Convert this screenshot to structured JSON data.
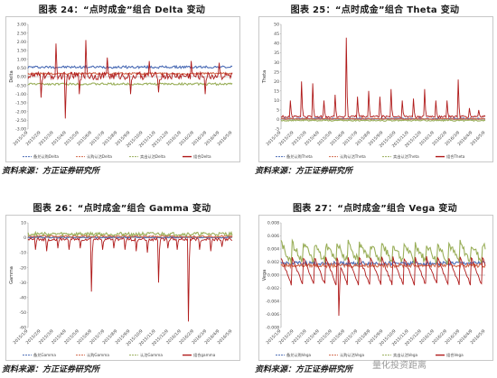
{
  "chart_data": [
    {
      "id": "c24",
      "type": "line",
      "title": "图表 24：“点时成金”组合 Delta 变动",
      "source": "资料来源：方正证券研究所",
      "ylabel": "Delta",
      "ylim": [
        -3,
        3
      ],
      "yticks": [
        "3.00",
        "2.50",
        "2.00",
        "1.50",
        "1.00",
        "0.50",
        "0.00",
        "-0.50",
        "-1.00",
        "-1.50",
        "-2.00",
        "-2.50",
        "-3.00"
      ],
      "xticks": [
        "2015/1/9",
        "2015/2/9",
        "2015/3/9",
        "2015/4/9",
        "2015/5/9",
        "2015/6/9",
        "2015/7/9",
        "2015/8/9",
        "2015/9/9",
        "2015/10/9",
        "2015/11/9",
        "2015/12/9",
        "2016/1/9",
        "2016/2/9",
        "2016/3/9",
        "2016/4/9",
        "2016/5/9"
      ],
      "legend": [
        "备兑认购Delta",
        "认购认沽Delta",
        "卖出认沽Delta",
        "组合Delta"
      ],
      "series": [
        {
          "name": "备兑认购Delta",
          "color": "#4a6bb5",
          "base": 0.55,
          "noise": 0.07,
          "spikes": [],
          "dips": []
        },
        {
          "name": "认购认沽Delta",
          "color": "#d2694c",
          "base": 0.18,
          "noise": 0.05,
          "spikes": [],
          "dips": []
        },
        {
          "name": "卖出认沽Delta",
          "color": "#9aaf5a",
          "base": -0.42,
          "noise": 0.06,
          "spikes": [],
          "dips": []
        },
        {
          "name": "组合Delta",
          "color": "#b01c1c",
          "base": 0.05,
          "noise": 0.22,
          "spikes": [
            [
              30,
              1.9
            ],
            [
              62,
              2.1
            ],
            [
              85,
              1.1
            ],
            [
              130,
              0.9
            ],
            [
              175,
              0.9
            ],
            [
              205,
              0.8
            ]
          ],
          "dips": [
            [
              14,
              -1.2
            ],
            [
              40,
              -2.4
            ],
            [
              55,
              -1.0
            ],
            [
              110,
              -1.0
            ],
            [
              140,
              -0.9
            ],
            [
              190,
              -1.0
            ]
          ]
        }
      ]
    },
    {
      "id": "c25",
      "type": "line",
      "title": "图表 25：“点时成金”组合 Theta 变动",
      "source": "资料来源：方正证券研究所",
      "ylabel": "Theta",
      "ylim": [
        -5,
        50
      ],
      "yticks": [
        "50",
        "45",
        "40",
        "35",
        "30",
        "25",
        "20",
        "15",
        "10",
        "5",
        "0",
        "-5"
      ],
      "xticks": [
        "2015/1/9",
        "2015/2/9",
        "2015/3/9",
        "2015/4/9",
        "2015/5/9",
        "2015/6/9",
        "2015/7/9",
        "2015/8/9",
        "2015/9/9",
        "2015/10/9",
        "2015/11/9",
        "2015/12/9",
        "2016/1/9",
        "2016/2/9",
        "2016/3/9",
        "2016/4/9",
        "2016/5/9"
      ],
      "legend": [
        "备兑认购Theta",
        "认购认沽Theta",
        "卖出认沽Theta",
        "组合Theta"
      ],
      "series": [
        {
          "name": "备兑认购Theta",
          "color": "#4a6bb5",
          "base": 0.5,
          "noise": 0.3,
          "spikes": [],
          "dips": []
        },
        {
          "name": "认购认沽Theta",
          "color": "#d2694c",
          "base": 0.3,
          "noise": 0.3,
          "spikes": [],
          "dips": []
        },
        {
          "name": "卖出认沽Theta",
          "color": "#9aaf5a",
          "base": -0.5,
          "noise": 0.4,
          "spikes": [],
          "dips": []
        },
        {
          "name": "组合Theta",
          "color": "#b01c1c",
          "base": 1.5,
          "noise": 0.6,
          "spikes": [
            [
              10,
              10
            ],
            [
              22,
              20
            ],
            [
              34,
              19
            ],
            [
              46,
              10
            ],
            [
              58,
              13
            ],
            [
              70,
              43
            ],
            [
              82,
              12
            ],
            [
              94,
              15
            ],
            [
              106,
              12
            ],
            [
              118,
              16
            ],
            [
              130,
              10
            ],
            [
              142,
              11
            ],
            [
              154,
              16
            ],
            [
              166,
              10
            ],
            [
              178,
              10
            ],
            [
              190,
              21
            ],
            [
              202,
              6
            ],
            [
              212,
              5
            ]
          ],
          "dips": []
        }
      ]
    },
    {
      "id": "c26",
      "type": "line",
      "title": "图表 26：“点时成金”组合 Gamma 变动",
      "source": "资料来源：方正证券研究所",
      "ylabel": "Gamma",
      "ylim": [
        -60,
        10
      ],
      "yticks": [
        "10",
        "0",
        "-10",
        "-20",
        "-30",
        "-40",
        "-50",
        "-60"
      ],
      "xticks": [
        "2015/1/9",
        "2015/2/9",
        "2015/3/9",
        "2015/4/9",
        "2015/5/9",
        "2015/6/9",
        "2015/7/9",
        "2015/8/9",
        "2015/9/9",
        "2015/10/9",
        "2015/11/9",
        "2015/12/9",
        "2016/1/9",
        "2016/2/9",
        "2016/3/9",
        "2016/4/9",
        "2016/5/9"
      ],
      "legend": [
        "备兑Gamma",
        "认购Gamma",
        "认沽Gamma",
        "组合gamma"
      ],
      "series": [
        {
          "name": "备兑Gamma",
          "color": "#4a6bb5",
          "base": 0.3,
          "noise": 0.5,
          "spikes": [],
          "dips": []
        },
        {
          "name": "认购Gamma",
          "color": "#d2694c",
          "base": 1.0,
          "noise": 0.6,
          "spikes": [],
          "dips": []
        },
        {
          "name": "认沽Gamma",
          "color": "#9aaf5a",
          "base": 2.5,
          "noise": 1.2,
          "spikes": [],
          "dips": []
        },
        {
          "name": "组合gamma",
          "color": "#b01c1c",
          "base": -1.0,
          "noise": 1.0,
          "spikes": [],
          "dips": [
            [
              8,
              -8
            ],
            [
              20,
              -9
            ],
            [
              32,
              -7
            ],
            [
              44,
              -8
            ],
            [
              56,
              -7
            ],
            [
              68,
              -36
            ],
            [
              80,
              -8
            ],
            [
              92,
              -7
            ],
            [
              104,
              -8
            ],
            [
              116,
              -9
            ],
            [
              128,
              -10
            ],
            [
              140,
              -30
            ],
            [
              150,
              -7
            ],
            [
              160,
              -8
            ],
            [
              172,
              -56
            ],
            [
              184,
              -8
            ],
            [
              196,
              -9
            ],
            [
              208,
              -6
            ]
          ]
        }
      ]
    },
    {
      "id": "c27",
      "type": "line",
      "title": "图表 27：“点时成金”组合 Vega 变动",
      "source": "资料来源：方正证券研究所",
      "ylabel": "Vega",
      "ylim": [
        -0.008,
        0.008
      ],
      "yticks": [
        "0.008",
        "0.006",
        "0.004",
        "0.002",
        "0.000",
        "-0.002",
        "-0.004",
        "-0.006",
        "-0.008"
      ],
      "xticks": [
        "2015/1/9",
        "2015/2/9",
        "2015/3/9",
        "2015/4/9",
        "2015/5/9",
        "2015/6/9",
        "2015/7/9",
        "2015/8/9",
        "2015/9/9",
        "2015/10/9",
        "2015/11/9",
        "2015/12/9",
        "2016/1/9",
        "2016/2/9",
        "2016/3/9",
        "2016/4/9",
        "2016/5/9"
      ],
      "legend": [
        "备兑认购Vega",
        "认购认沽Vega",
        "卖出认沽Vega",
        "组合Vega"
      ],
      "series": [
        {
          "name": "备兑认购Vega",
          "color": "#4a6bb5",
          "base": 0.0018,
          "noise": 0.0003,
          "spikes": [],
          "dips": []
        },
        {
          "name": "认购认沽Vega",
          "color": "#d2694c",
          "base": 0.0015,
          "noise": 0.0003,
          "spikes": [],
          "dips": []
        },
        {
          "name": "卖出认沽Vega",
          "color": "#9aaf5a",
          "base": 0.003,
          "noise": 0.0012,
          "saw": true,
          "spikes": [],
          "dips": []
        },
        {
          "name": "组合Vega",
          "color": "#b01c1c",
          "base": 0.0,
          "noise": 0.0004,
          "saw": true,
          "sawAmp": 0.0045,
          "spikes": [],
          "dips": [
            [
              62,
              -0.0062
            ]
          ]
        }
      ]
    }
  ],
  "watermark": "量化投资距离"
}
